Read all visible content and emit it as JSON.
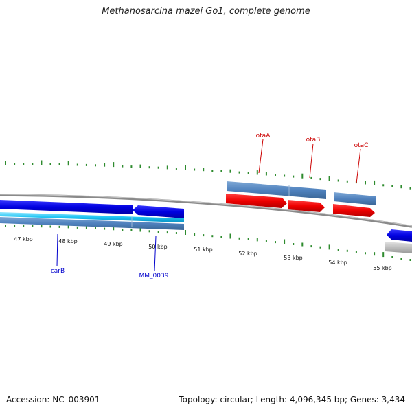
{
  "header": {
    "title": "Methanosarcina mazei Go1, complete genome"
  },
  "footer": {
    "accession": "Accession: NC_003901",
    "summary": "Topology: circular; Length: 4,096,345 bp; Genes: 3,434"
  },
  "colors": {
    "forward_cds": "#ff0000",
    "reverse_cds": "#0000ff",
    "gene_track": "#4f81bd",
    "rna_track": "#00bfff",
    "backbone": "#808080",
    "gc_ticks": "#2e8b2e",
    "forward_label": "#cc0000",
    "reverse_label": "#0000cc"
  },
  "ruler": {
    "ticks": [
      "47 kbp",
      "48 kbp",
      "49 kbp",
      "50 kbp",
      "51 kbp",
      "52 kbp",
      "53 kbp",
      "54 kbp",
      "55 kbp"
    ]
  },
  "labels": {
    "forward": [
      "otaA",
      "otaB",
      "otaC"
    ],
    "reverse": [
      "carB",
      "MM_0039"
    ]
  }
}
